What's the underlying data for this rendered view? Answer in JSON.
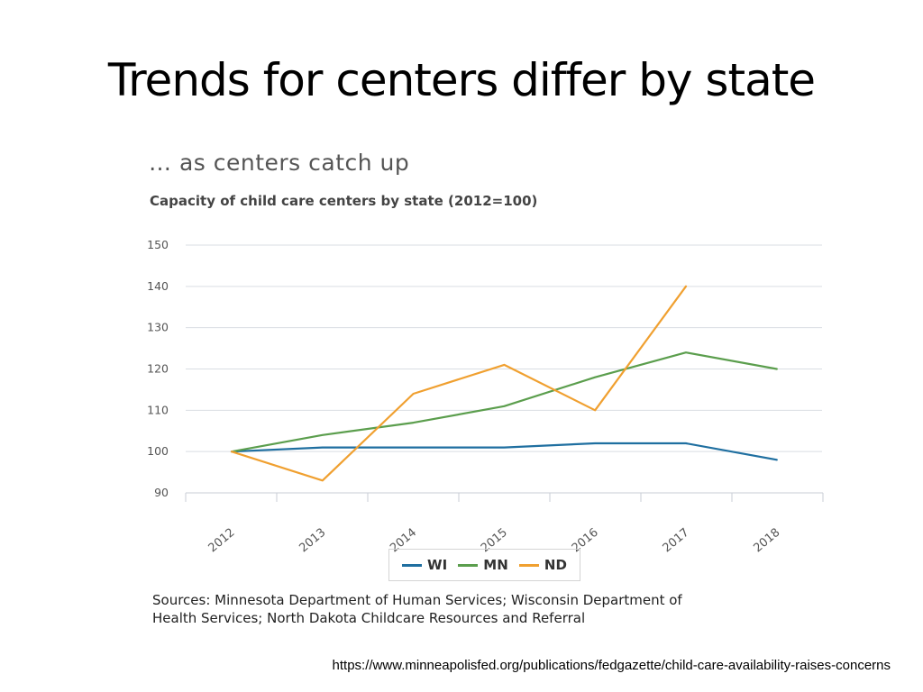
{
  "slide": {
    "title": "Trends for centers differ by state",
    "url": "https://www.minneapolisfed.org/publications/fedgazette/child-care-availability-raises-concerns"
  },
  "chart_data": {
    "type": "line",
    "subtitle": "… as centers catch up",
    "title": "Capacity of child care centers by state (2012=100)",
    "x": [
      "2012",
      "2013",
      "2014",
      "2015",
      "2016",
      "2017",
      "2018"
    ],
    "series": [
      {
        "name": "WI",
        "color": "#1f6fa0",
        "values": [
          100,
          101,
          101,
          101,
          102,
          102,
          98
        ]
      },
      {
        "name": "MN",
        "color": "#5b9e4d",
        "values": [
          100,
          104,
          107,
          111,
          118,
          124,
          120
        ]
      },
      {
        "name": "ND",
        "color": "#f0a030",
        "values": [
          100,
          93,
          114,
          121,
          110,
          140,
          null
        ]
      }
    ],
    "yticks": [
      "150",
      "140",
      "130",
      "120",
      "110",
      "100",
      "90"
    ],
    "ylim": [
      90,
      150
    ],
    "grid": true,
    "legend_position": "bottom-center",
    "xlabel": "",
    "ylabel": "",
    "sources": "Sources: Minnesota Department of Human Services; Wisconsin Department of Health Services; North Dakota Childcare Resources and Referral"
  }
}
